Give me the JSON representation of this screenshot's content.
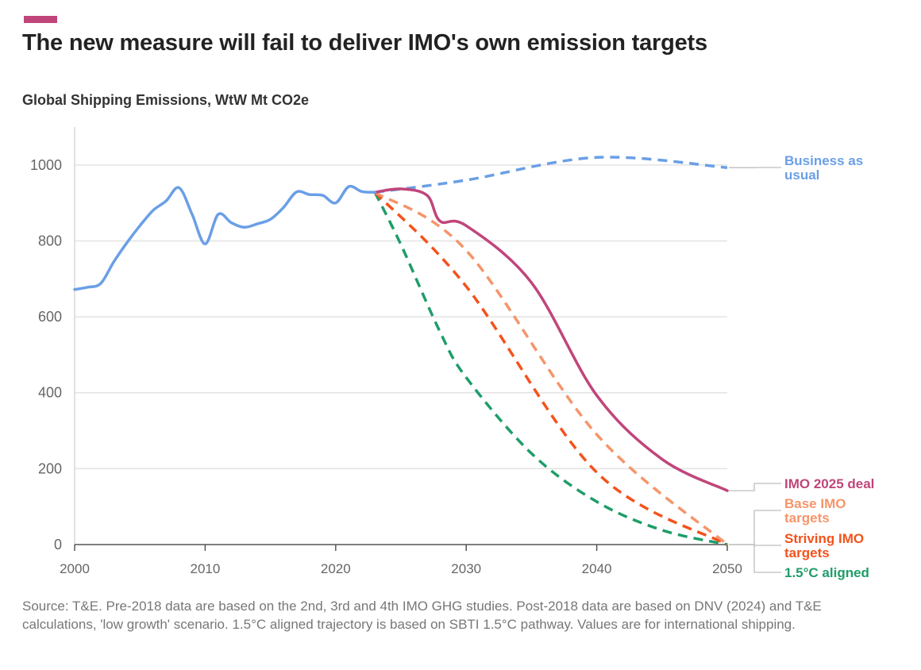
{
  "header": {
    "accent_color": "#c0457b",
    "title": "The new measure will fail to deliver IMO's own emission targets",
    "subtitle": "Global Shipping Emissions, WtW Mt CO2e"
  },
  "chart_data": {
    "type": "line",
    "title": "The new measure will fail to deliver IMO's own emission targets",
    "ylabel": "Global Shipping Emissions, WtW Mt CO2e",
    "xlim": [
      2000,
      2050
    ],
    "ylim": [
      0,
      1100
    ],
    "x_ticks": [
      2000,
      2010,
      2020,
      2030,
      2040,
      2050
    ],
    "y_ticks": [
      0,
      200,
      400,
      600,
      800,
      1000
    ],
    "grid": "horizontal",
    "historical": {
      "color": "#6a9fe6",
      "x": [
        2000,
        2001,
        2002,
        2003,
        2004,
        2005,
        2006,
        2007,
        2008,
        2009,
        2010,
        2011,
        2012,
        2013,
        2014,
        2015,
        2016,
        2017,
        2018,
        2019,
        2020,
        2021,
        2022,
        2023
      ],
      "y": [
        672,
        678,
        688,
        745,
        795,
        840,
        880,
        905,
        940,
        870,
        792,
        870,
        848,
        836,
        845,
        857,
        888,
        929,
        922,
        920,
        900,
        943,
        930,
        928
      ]
    },
    "series": [
      {
        "name": "Business as usual",
        "label_lines": [
          "Business as",
          "usual"
        ],
        "color": "#6a9fe6",
        "dash": true,
        "x": [
          2023,
          2030,
          2040,
          2050
        ],
        "y": [
          928,
          960,
          1020,
          993
        ]
      },
      {
        "name": "IMO 2025 deal",
        "label_lines": [
          "IMO 2025 deal"
        ],
        "color": "#c0457b",
        "dash": false,
        "x": [
          2023,
          2025,
          2027,
          2028,
          2030,
          2035,
          2040,
          2045,
          2050
        ],
        "y": [
          928,
          937,
          920,
          852,
          840,
          690,
          393,
          225,
          142
        ]
      },
      {
        "name": "Base IMO targets",
        "label_lines": [
          "Base IMO",
          "targets"
        ],
        "color": "#f5956a",
        "dash": true,
        "x": [
          2023,
          2030,
          2040,
          2050
        ],
        "y": [
          928,
          775,
          290,
          0
        ]
      },
      {
        "name": "Striving IMO targets",
        "label_lines": [
          "Striving IMO",
          "targets"
        ],
        "color": "#f4521c",
        "dash": true,
        "x": [
          2023,
          2030,
          2040,
          2050
        ],
        "y": [
          928,
          680,
          190,
          0
        ]
      },
      {
        "name": "1.5°C aligned",
        "label_lines": [
          "1.5°C aligned"
        ],
        "color": "#1f9d69",
        "dash": true,
        "x": [
          2023,
          2025,
          2028,
          2030,
          2035,
          2040,
          2045,
          2050
        ],
        "y": [
          928,
          790,
          560,
          440,
          240,
          113,
          38,
          0
        ]
      }
    ]
  },
  "footnote": "Source: T&E. Pre-2018 data are based on the 2nd, 3rd and 4th IMO GHG studies. Post-2018 data are based on DNV (2024) and T&E calculations, 'low growth' scenario. 1.5°C aligned trajectory is based on SBTI 1.5°C pathway. Values are for international shipping."
}
